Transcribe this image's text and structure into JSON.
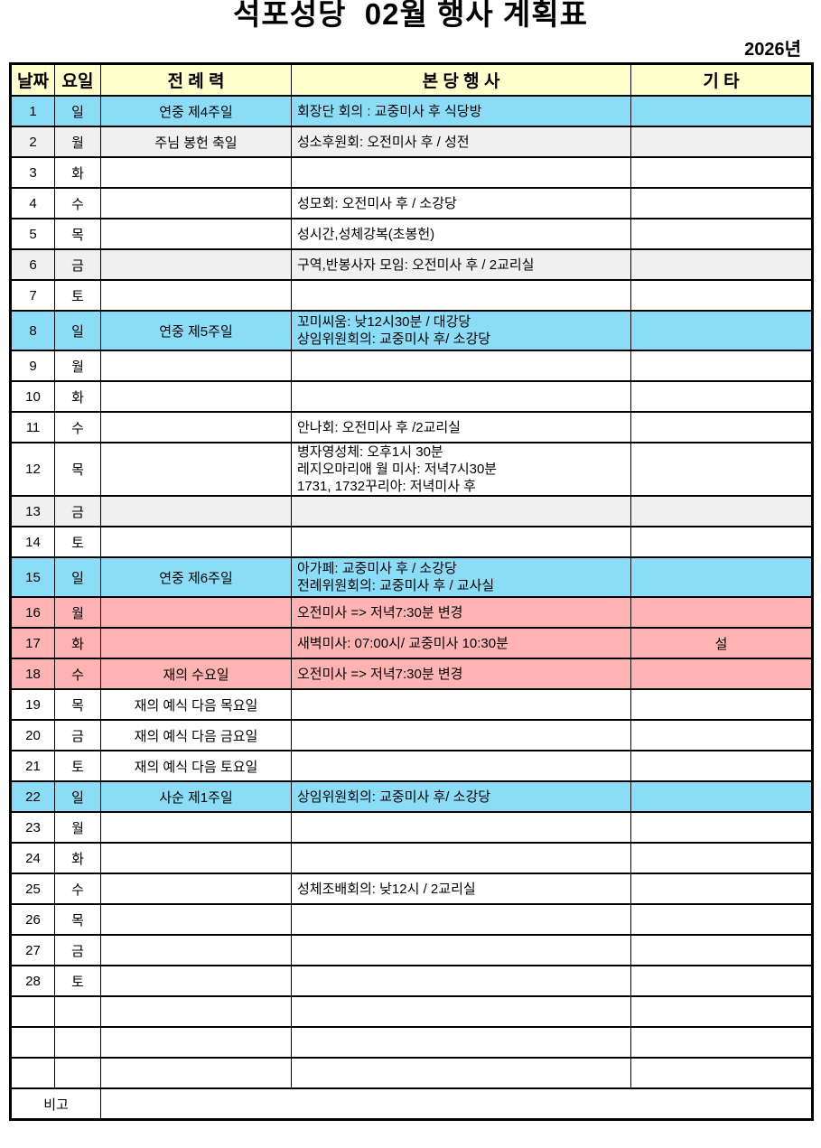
{
  "title": "석포성당  02월 행사 계획표",
  "year_label": "2026년",
  "colors": {
    "header_yellow": "#FFFFCC",
    "sunday_blue": "#8BDDF7",
    "holiday_pink": "#FFB3B3",
    "shaded_gray": "#F0F0F0",
    "border_black": "#000000"
  },
  "table": {
    "headers": [
      "날짜",
      "요일",
      "전 례 력",
      "본 당 행 사",
      "기 타"
    ],
    "rows": [
      {
        "date": "1",
        "day": "일",
        "liturgical": "연중 제4주일",
        "events": [
          "회장단 회의 : 교중미사 후 식당방"
        ],
        "etc": "",
        "color": "blue"
      },
      {
        "date": "2",
        "day": "월",
        "liturgical": "주님 봉헌 축일",
        "events": [
          "성소후원회: 오전미사 후 / 성전"
        ],
        "etc": "",
        "color": "gray"
      },
      {
        "date": "3",
        "day": "화",
        "liturgical": "",
        "events": [],
        "etc": "",
        "color": "white"
      },
      {
        "date": "4",
        "day": "수",
        "liturgical": "",
        "events": [
          "성모회: 오전미사 후 / 소강당"
        ],
        "etc": "",
        "color": "white"
      },
      {
        "date": "5",
        "day": "목",
        "liturgical": "",
        "events": [
          "성시간,성체강복(초봉헌)"
        ],
        "etc": "",
        "color": "white"
      },
      {
        "date": "6",
        "day": "금",
        "liturgical": "",
        "events": [
          "구역,반봉사자 모임: 오전미사 후 / 2교리실"
        ],
        "etc": "",
        "color": "gray"
      },
      {
        "date": "7",
        "day": "토",
        "liturgical": "",
        "events": [],
        "etc": "",
        "color": "white"
      },
      {
        "date": "8",
        "day": "일",
        "liturgical": "연중 제5주일",
        "events": [
          "꼬미씨움: 낮12시30분 / 대강당",
          "상임위원회의: 교중미사 후/ 소강당"
        ],
        "etc": "",
        "color": "blue"
      },
      {
        "date": "9",
        "day": "월",
        "liturgical": "",
        "events": [],
        "etc": "",
        "color": "white"
      },
      {
        "date": "10",
        "day": "화",
        "liturgical": "",
        "events": [],
        "etc": "",
        "color": "white"
      },
      {
        "date": "11",
        "day": "수",
        "liturgical": "",
        "events": [
          "안나회: 오전미사 후 /2교리실"
        ],
        "etc": "",
        "color": "white"
      },
      {
        "date": "12",
        "day": "목",
        "liturgical": "",
        "events": [
          "병자영성체: 오후1시 30분",
          "레지오마리애 월 미사: 저녁7시30분",
          "1731, 1732꾸리아: 저녁미사 후"
        ],
        "etc": "",
        "color": "white"
      },
      {
        "date": "13",
        "day": "금",
        "liturgical": "",
        "events": [],
        "etc": "",
        "color": "gray"
      },
      {
        "date": "14",
        "day": "토",
        "liturgical": "",
        "events": [],
        "etc": "",
        "color": "white"
      },
      {
        "date": "15",
        "day": "일",
        "liturgical": "연중 제6주일",
        "events": [
          "아가페: 교중미사 후 / 소강당",
          "전례위원회의: 교중미사 후 / 교사실"
        ],
        "etc": "",
        "color": "blue"
      },
      {
        "date": "16",
        "day": "월",
        "liturgical": "",
        "events": [
          "오전미사 => 저녁7:30분 변경"
        ],
        "etc": "",
        "color": "pink"
      },
      {
        "date": "17",
        "day": "화",
        "liturgical": "",
        "events": [
          "새벽미사: 07:00시/ 교중미사 10:30분"
        ],
        "etc": "설",
        "color": "pink"
      },
      {
        "date": "18",
        "day": "수",
        "liturgical": "재의 수요일",
        "events": [
          "오전미사 => 저녁7:30분 변경"
        ],
        "etc": "",
        "color": "pink"
      },
      {
        "date": "19",
        "day": "목",
        "liturgical": "재의 예식 다음 목요일",
        "events": [],
        "etc": "",
        "color": "white"
      },
      {
        "date": "20",
        "day": "금",
        "liturgical": "재의 예식 다음 금요일",
        "events": [],
        "etc": "",
        "color": "white"
      },
      {
        "date": "21",
        "day": "토",
        "liturgical": "재의 예식 다음 토요일",
        "events": [],
        "etc": "",
        "color": "white"
      },
      {
        "date": "22",
        "day": "일",
        "liturgical": "사순 제1주일",
        "events": [
          "상임위원회의: 교중미사 후/ 소강당"
        ],
        "etc": "",
        "color": "blue"
      },
      {
        "date": "23",
        "day": "월",
        "liturgical": "",
        "events": [],
        "etc": "",
        "color": "white"
      },
      {
        "date": "24",
        "day": "화",
        "liturgical": "",
        "events": [],
        "etc": "",
        "color": "white"
      },
      {
        "date": "25",
        "day": "수",
        "liturgical": "",
        "events": [
          "성체조배회의: 낮12시 / 2교리실"
        ],
        "etc": "",
        "color": "white"
      },
      {
        "date": "26",
        "day": "목",
        "liturgical": "",
        "events": [],
        "etc": "",
        "color": "white"
      },
      {
        "date": "27",
        "day": "금",
        "liturgical": "",
        "events": [],
        "etc": "",
        "color": "white"
      },
      {
        "date": "28",
        "day": "토",
        "liturgical": "",
        "events": [],
        "etc": "",
        "color": "white"
      },
      {
        "date": "",
        "day": "",
        "liturgical": "",
        "events": [],
        "etc": "",
        "color": "white"
      },
      {
        "date": "",
        "day": "",
        "liturgical": "",
        "events": [],
        "etc": "",
        "color": "white"
      },
      {
        "date": "",
        "day": "",
        "liturgical": "",
        "events": [],
        "etc": "",
        "color": "white"
      }
    ],
    "footer_label": "비고",
    "footer_value": ""
  }
}
